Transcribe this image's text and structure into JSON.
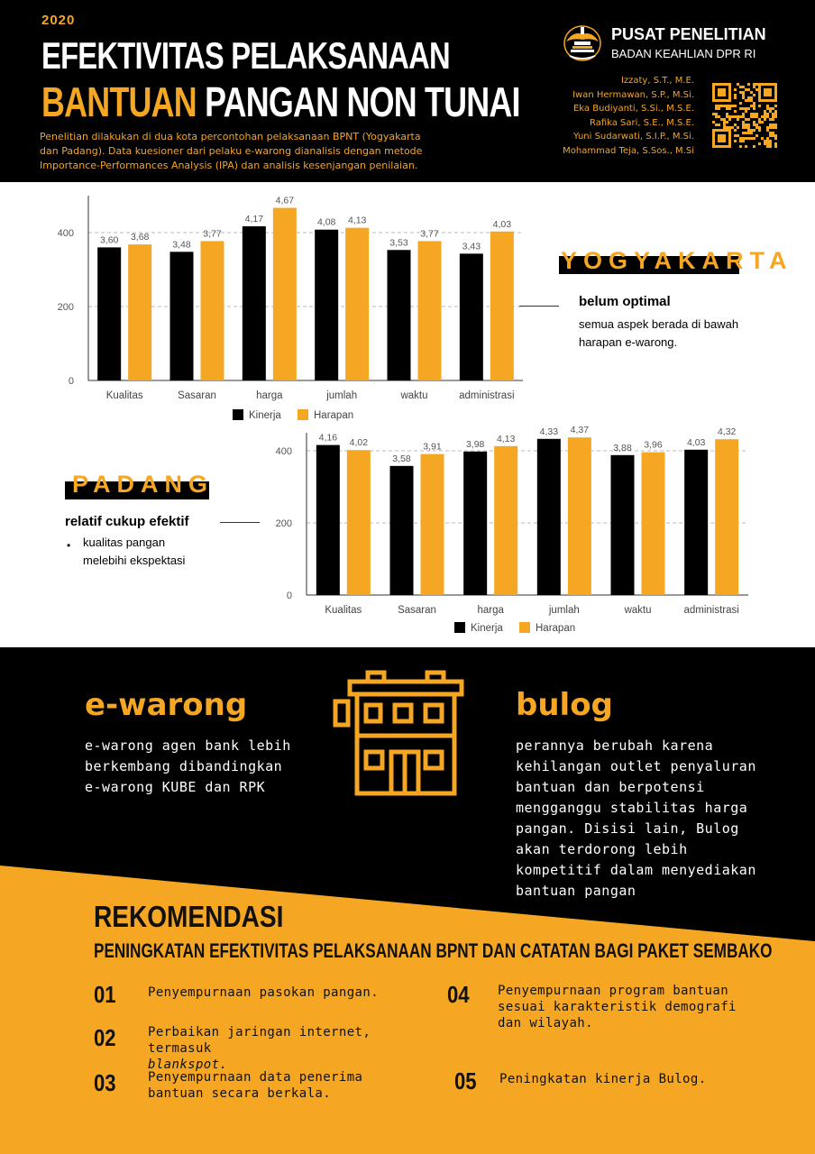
{
  "header": {
    "year": "2020",
    "title_line1": "EFEKTIVITAS PELAKSANAAN",
    "title_line2_highlight": "BANTUAN",
    "title_line2_rest": " PANGAN NON TUNAI",
    "intro": "Penelitian dilakukan di dua kota percontohan pelaksanaan BPNT (Yogyakarta dan Padang). Data kuesioner dari pelaku e-warong dianalisis dengan metode Importance-Performances Analysis (IPA) dan analisis kesenjangan penilaian.",
    "org_name": "PUSAT PENELITIAN",
    "org_sub": "BADAN KEAHLIAN DPR RI",
    "authors": [
      "Izzaty, S.T., M.E.",
      "Iwan Hermawan, S.P., M.Si.",
      "Eka Budiyanti, S.Si., M.S.E.",
      "Rafika Sari, S.E., M.S.E.",
      "Yuni Sudarwati, S.I.P., M.Si.",
      "Mohammad Teja, S.Sos., M.Si"
    ],
    "colors": {
      "accent": "#f5a623",
      "dark": "#000000"
    }
  },
  "chart_data": [
    {
      "type": "bar",
      "categories": [
        "Kualitas",
        "Sasaran",
        "harga",
        "jumlah",
        "waktu",
        "administrasi"
      ],
      "series": [
        {
          "name": "Kinerja",
          "values": [
            360,
            348,
            417,
            408,
            353,
            343
          ],
          "labels": [
            "3,60",
            "3,48",
            "4,17",
            "4,08",
            "3,53",
            "3,43"
          ],
          "color": "#000000"
        },
        {
          "name": "Harapan",
          "values": [
            368,
            377,
            467,
            413,
            377,
            403
          ],
          "labels": [
            "3,68",
            "3,77",
            "4,67",
            "4,13",
            "3,77",
            "4,03"
          ],
          "color": "#f5a623"
        }
      ],
      "yticks": [
        "0",
        "200",
        "400"
      ],
      "ylim": [
        0,
        500
      ],
      "grid": true,
      "legend": "bottom"
    },
    {
      "type": "bar",
      "categories": [
        "Kualitas",
        "Sasaran",
        "harga",
        "jumlah",
        "waktu",
        "administrasi"
      ],
      "series": [
        {
          "name": "Kinerja",
          "values": [
            416,
            358,
            398,
            433,
            388,
            403
          ],
          "labels": [
            "4,16",
            "3,58",
            "3,98",
            "4,33",
            "3,88",
            "4,03"
          ],
          "color": "#000000"
        },
        {
          "name": "Harapan",
          "values": [
            402,
            391,
            413,
            437,
            396,
            432
          ],
          "labels": [
            "4,02",
            "3,91",
            "4,13",
            "4,37",
            "3,96",
            "4,32"
          ],
          "color": "#f5a623"
        }
      ],
      "yticks": [
        "0",
        "200",
        "400"
      ],
      "ylim": [
        0,
        450
      ],
      "grid": true,
      "legend": "bottom"
    }
  ],
  "yogyakarta": {
    "city": "YOGYAKARTA",
    "heading": "belum optimal",
    "body": "semua aspek berada di bawah harapan e-warong."
  },
  "padang": {
    "city": "PADANG",
    "heading": "relatif cukup efektif",
    "bullet": "kualitas pangan melebihi ekspektasi"
  },
  "ewarong": {
    "title": "e-warong",
    "body": "e-warong agen bank lebih berkembang dibandingkan e-warong KUBE dan RPK"
  },
  "bulog": {
    "title": "bulog",
    "body": "perannya berubah karena kehilangan outlet penyaluran bantuan dan berpotensi mengganggu stabilitas harga pangan. Disisi lain, Bulog akan terdorong lebih kompetitif dalam menyediakan bantuan pangan"
  },
  "rekomendasi": {
    "title": "REKOMENDASI",
    "subtitle": "PENINGKATAN EFEKTIVITAS PELAKSANAAN BPNT DAN CATATAN BAGI PAKET SEMBAKO",
    "items": [
      {
        "num": "01",
        "text": "Penyempurnaan pasokan pangan.",
        "italic": ""
      },
      {
        "num": "02",
        "text": "Perbaikan jaringan internet, termasuk",
        "italic": "blankspot."
      },
      {
        "num": "03",
        "text": "Penyempurnaan data penerima bantuan secara berkala.",
        "italic": ""
      },
      {
        "num": "04",
        "text": "Penyempurnaan program bantuan sesuai karakteristik demografi dan wilayah.",
        "italic": ""
      },
      {
        "num": "05",
        "text": "Peningkatan kinerja Bulog.",
        "italic": ""
      }
    ]
  }
}
